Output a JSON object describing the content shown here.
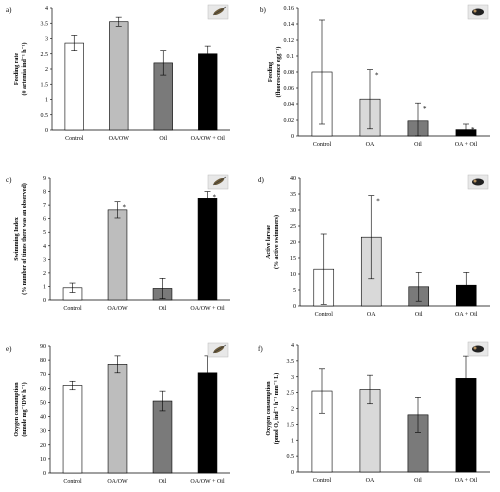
{
  "chart_data": [
    {
      "type": "bar",
      "panel_label": "a)",
      "ylabel": "Feeding rate",
      "ylabel_units": "(# artemia ind⁻¹ h⁻¹)",
      "categories": [
        "Control",
        "OA/OW",
        "Oil",
        "OA/OW + Oil"
      ],
      "values": [
        2.85,
        3.55,
        2.2,
        2.5
      ],
      "errors": [
        0.25,
        0.15,
        0.4,
        0.25
      ],
      "significant": [
        false,
        false,
        false,
        false
      ],
      "bar_colors": [
        "#ffffff",
        "#bdbdbd",
        "#7a7a7a",
        "#000000"
      ],
      "ylim": [
        0,
        4
      ],
      "yticks": [
        "0",
        "0.5",
        "1",
        "1.5",
        "2",
        "2.5",
        "3",
        "3.5",
        "4"
      ],
      "grid": false,
      "icon": "copepod-icon",
      "significance_marks": []
    },
    {
      "type": "bar",
      "panel_label": "b)",
      "ylabel": "Feeding",
      "ylabel_units": "(fluorescence egg⁻¹)",
      "categories": [
        "Control",
        "OA",
        "Oil",
        "OA + Oil"
      ],
      "values": [
        0.08,
        0.046,
        0.019,
        0.008
      ],
      "errors": [
        0.065,
        0.037,
        0.022,
        0.007
      ],
      "significant": [
        false,
        true,
        true,
        true
      ],
      "bar_colors": [
        "#ffffff",
        "#d9d9d9",
        "#7a7a7a",
        "#000000"
      ],
      "ylim": [
        0,
        0.16
      ],
      "yticks": [
        "0",
        "0.02",
        "0.04",
        "0.06",
        "0.08",
        "0.1",
        "0.12",
        "0.14",
        "0.16"
      ],
      "grid": false,
      "icon": "larva-icon",
      "significance_marks": [
        "*",
        "*",
        "*"
      ]
    },
    {
      "type": "bar",
      "panel_label": "c)",
      "ylabel": "Swimming Index",
      "ylabel_units": "(% number of times there was an observed)",
      "categories": [
        "Control",
        "OA/OW",
        "Oil",
        "OA/OW + Oil"
      ],
      "values": [
        0.9,
        6.65,
        0.85,
        7.5
      ],
      "errors": [
        0.35,
        0.6,
        0.75,
        0.5
      ],
      "significant": [
        false,
        true,
        false,
        true
      ],
      "bar_colors": [
        "#ffffff",
        "#bdbdbd",
        "#7a7a7a",
        "#000000"
      ],
      "ylim": [
        0,
        9
      ],
      "yticks": [
        "0",
        "1",
        "2",
        "3",
        "4",
        "5",
        "6",
        "7",
        "8",
        "9"
      ],
      "grid": false,
      "icon": "copepod-icon",
      "significance_marks": [
        "*",
        "*"
      ]
    },
    {
      "type": "bar",
      "panel_label": "d)",
      "ylabel": "Active larvae",
      "ylabel_units": "(% active swimmers)",
      "categories": [
        "Control",
        "OA",
        "Oil",
        "OA + Oil"
      ],
      "values": [
        11.5,
        21.5,
        6,
        6.5
      ],
      "errors": [
        11,
        13,
        4.5,
        4
      ],
      "significant": [
        false,
        true,
        false,
        false
      ],
      "bar_colors": [
        "#ffffff",
        "#d9d9d9",
        "#7a7a7a",
        "#000000"
      ],
      "ylim": [
        0,
        40
      ],
      "yticks": [
        "0",
        "5",
        "10",
        "15",
        "20",
        "25",
        "30",
        "35",
        "40"
      ],
      "grid": false,
      "icon": "larva-icon",
      "significance_marks": [
        "*"
      ]
    },
    {
      "type": "bar",
      "panel_label": "e)",
      "ylabel": "Oxygen consumption",
      "ylabel_units": "(nmole mg⁻¹DW h⁻¹)",
      "categories": [
        "Control",
        "OA/OW",
        "Oil",
        "OA/OW + Oil"
      ],
      "values": [
        62,
        77,
        51,
        71
      ],
      "errors": [
        3,
        6,
        7,
        12
      ],
      "significant": [
        false,
        false,
        false,
        false
      ],
      "bar_colors": [
        "#ffffff",
        "#bdbdbd",
        "#7a7a7a",
        "#000000"
      ],
      "ylim": [
        0,
        90
      ],
      "yticks": [
        "0",
        "10",
        "20",
        "30",
        "40",
        "50",
        "60",
        "70",
        "80",
        "90"
      ],
      "grid": false,
      "icon": "copepod-icon",
      "significance_marks": []
    },
    {
      "type": "bar",
      "panel_label": "f)",
      "ylabel": "Oxygen consumption",
      "ylabel_units": "(pmol O₂ ind⁻¹ h⁻¹ mm⁻¹ L)",
      "categories": [
        "Control",
        "OA",
        "Oil",
        "OA + Oil"
      ],
      "values": [
        2.55,
        2.6,
        1.8,
        2.95
      ],
      "errors": [
        0.7,
        0.45,
        0.55,
        0.7
      ],
      "significant": [
        false,
        false,
        false,
        false
      ],
      "bar_colors": [
        "#ffffff",
        "#d9d9d9",
        "#7a7a7a",
        "#000000"
      ],
      "ylim": [
        0,
        4
      ],
      "yticks": [
        "0",
        "0.5",
        "1",
        "1.5",
        "2",
        "2.5",
        "3",
        "3.5",
        "4"
      ],
      "grid": false,
      "icon": "larva-icon",
      "significance_marks": []
    }
  ]
}
